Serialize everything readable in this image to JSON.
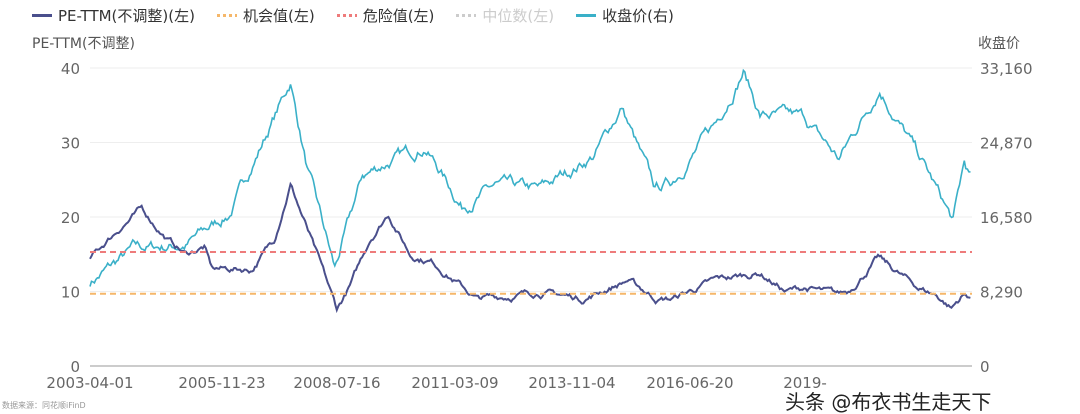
{
  "chart_data": {
    "type": "line",
    "legend": [
      {
        "name": "PE-TTM(不调整)(左)",
        "color": "#4a4f8c",
        "style": "solid"
      },
      {
        "name": "机会值(左)",
        "color": "#f5b76a",
        "style": "dotted"
      },
      {
        "name": "危险值(左)",
        "color": "#ee7b7b",
        "style": "dotted"
      },
      {
        "name": "中位数(左)",
        "color": "#cccccc",
        "style": "dotted"
      },
      {
        "name": "收盘价(右)",
        "color": "#3ab0c8",
        "style": "solid"
      }
    ],
    "legend_placement": "top-left",
    "ylabel_left": "PE-TTM(不调整)",
    "ylabel_right": "收盘价",
    "ylim_left": [
      0,
      40
    ],
    "ylim_right": [
      0,
      33160
    ],
    "yticks_left": [
      "0",
      "10",
      "20",
      "30",
      "40"
    ],
    "yticks_right": [
      "0",
      "8,290",
      "16,580",
      "24,870",
      "33,160"
    ],
    "xticks": [
      "2003-04-01",
      "2005-11-23",
      "2008-07-16",
      "2011-03-09",
      "2013-11-04",
      "2016-06-20",
      "2019-"
    ],
    "xlim": [
      "2003-04-01",
      "2023-03-20"
    ],
    "opportunity_value": 9.7,
    "danger_value": 15.3,
    "pe": [
      [
        "2003-04-01",
        14.5
      ],
      [
        "2004-01-01",
        19
      ],
      [
        "2004-06-01",
        21
      ],
      [
        "2005-01-01",
        17
      ],
      [
        "2005-06-01",
        15
      ],
      [
        "2005-11-01",
        16
      ],
      [
        "2006-01-01",
        13
      ],
      [
        "2006-12-01",
        13
      ],
      [
        "2007-06-01",
        17
      ],
      [
        "2007-10-15",
        24.5
      ],
      [
        "2008-04-01",
        17
      ],
      [
        "2008-11-01",
        7.5
      ],
      [
        "2009-03-01",
        11
      ],
      [
        "2009-08-01",
        17
      ],
      [
        "2010-01-01",
        20.5
      ],
      [
        "2010-07-01",
        15
      ],
      [
        "2011-01-01",
        14
      ],
      [
        "2011-06-01",
        12
      ],
      [
        "2012-01-01",
        9
      ],
      [
        "2012-12-01",
        9.5
      ],
      [
        "2013-06-01",
        10
      ],
      [
        "2014-06-01",
        9
      ],
      [
        "2015-06-01",
        11.5
      ],
      [
        "2016-02-01",
        9
      ],
      [
        "2016-06-01",
        9
      ],
      [
        "2017-06-01",
        11.5
      ],
      [
        "2018-06-01",
        12.5
      ],
      [
        "2019-01-01",
        10
      ],
      [
        "2019-06-01",
        10.5
      ],
      [
        "2020-03-01",
        9.5
      ],
      [
        "2020-06-01",
        10
      ],
      [
        "2021-02-01",
        14.5
      ],
      [
        "2021-06-01",
        13
      ],
      [
        "2022-01-01",
        10.5
      ],
      [
        "2022-06-01",
        9.5
      ],
      [
        "2022-10-01",
        7.8
      ],
      [
        "2023-01-01",
        9.5
      ],
      [
        "2023-03-20",
        9.3
      ]
    ],
    "close": [
      [
        "2003-04-01",
        9300
      ],
      [
        "2004-04-01",
        13000
      ],
      [
        "2005-06-01",
        13500
      ],
      [
        "2006-06-01",
        17000
      ],
      [
        "2007-10-15",
        31600
      ],
      [
        "2008-03-01",
        22000
      ],
      [
        "2008-10-15",
        10700
      ],
      [
        "2009-06-01",
        21000
      ],
      [
        "2009-12-01",
        22500
      ],
      [
        "2010-11-01",
        24500
      ],
      [
        "2011-09-01",
        17800
      ],
      [
        "2012-06-01",
        20000
      ],
      [
        "2013-06-01",
        19500
      ],
      [
        "2014-09-01",
        23500
      ],
      [
        "2015-04-15",
        28800
      ],
      [
        "2016-01-15",
        19500
      ],
      [
        "2016-06-01",
        20500
      ],
      [
        "2017-06-01",
        27000
      ],
      [
        "2018-01-15",
        33000
      ],
      [
        "2018-06-01",
        28000
      ],
      [
        "2019-06-01",
        27500
      ],
      [
        "2020-03-15",
        23000
      ],
      [
        "2021-02-15",
        31000
      ],
      [
        "2021-08-01",
        27000
      ],
      [
        "2022-03-01",
        22000
      ],
      [
        "2022-10-15",
        16000
      ],
      [
        "2023-01-15",
        22500
      ],
      [
        "2023-03-20",
        20500
      ]
    ]
  },
  "source": "数据来源：同花顺iFinD",
  "watermark": "头条 @布衣书生走天下"
}
